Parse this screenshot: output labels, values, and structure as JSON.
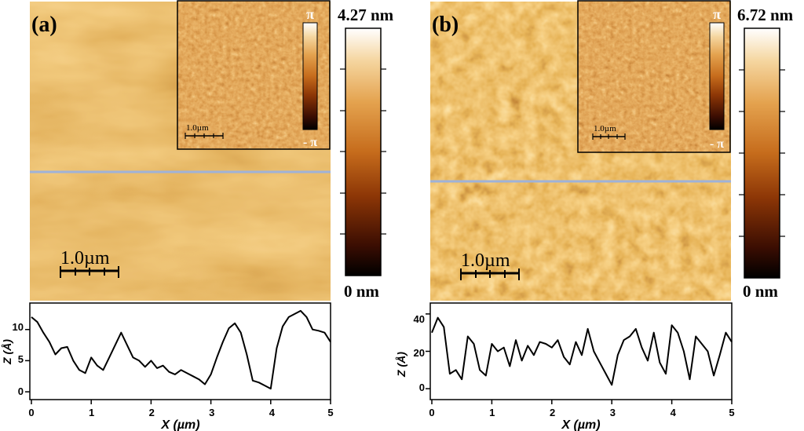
{
  "panels": [
    {
      "id": "a",
      "label": "(a)",
      "colorbar_max": "4.27 nm",
      "colorbar_min": "0 nm",
      "phase_max": "π",
      "phase_min": "- π",
      "scalebar_label": "1.0µm",
      "inset_scalebar_label": "1.0µm",
      "profile": {
        "type": "line",
        "xlabel": "X (µm)",
        "ylabel": "Z (Å)",
        "xlim": [
          0,
          5
        ],
        "ylim": [
          -1,
          14
        ],
        "xticks": [
          "0",
          "1",
          "2",
          "3",
          "4",
          "5"
        ],
        "yticks": [
          "0",
          "5",
          "10"
        ],
        "x": [
          0,
          0.1,
          0.2,
          0.3,
          0.4,
          0.5,
          0.6,
          0.7,
          0.8,
          0.9,
          1.0,
          1.1,
          1.2,
          1.3,
          1.4,
          1.5,
          1.6,
          1.7,
          1.8,
          1.9,
          2.0,
          2.1,
          2.2,
          2.3,
          2.4,
          2.5,
          2.6,
          2.7,
          2.8,
          2.9,
          3.0,
          3.1,
          3.2,
          3.3,
          3.4,
          3.5,
          3.6,
          3.7,
          3.8,
          3.9,
          4.0,
          4.1,
          4.2,
          4.3,
          4.4,
          4.5,
          4.6,
          4.7,
          4.8,
          4.9,
          5.0
        ],
        "y": [
          12,
          11.2,
          9.5,
          8,
          6,
          7,
          7.2,
          5,
          3.5,
          3,
          5.5,
          4.2,
          3.5,
          5.5,
          7.5,
          9.5,
          7.5,
          5.5,
          5,
          4,
          5,
          3.8,
          4.2,
          3.2,
          2.8,
          3.5,
          3,
          2.5,
          2,
          1.2,
          2.8,
          5.5,
          8,
          10.2,
          11,
          9.5,
          6,
          1.8,
          1.5,
          1,
          0.5,
          7,
          10.5,
          12,
          12.5,
          13,
          12,
          10,
          9.8,
          9.5,
          8
        ]
      }
    },
    {
      "id": "b",
      "label": "(b)",
      "colorbar_max": "6.72 nm",
      "colorbar_min": "0 nm",
      "phase_max": "π",
      "phase_min": "- π",
      "scalebar_label": "1.0µm",
      "inset_scalebar_label": "1.0µm",
      "profile": {
        "type": "line",
        "xlabel": "X (µm)",
        "ylabel": "Z (Å)",
        "xlim": [
          0,
          5
        ],
        "ylim": [
          -5,
          45
        ],
        "xticks": [
          "0",
          "1",
          "2",
          "3",
          "4",
          "5"
        ],
        "yticks": [
          "0",
          "20",
          "40"
        ],
        "x": [
          0,
          0.1,
          0.2,
          0.3,
          0.4,
          0.5,
          0.6,
          0.7,
          0.8,
          0.9,
          1.0,
          1.1,
          1.2,
          1.3,
          1.4,
          1.5,
          1.6,
          1.7,
          1.8,
          1.9,
          2.0,
          2.1,
          2.2,
          2.3,
          2.4,
          2.5,
          2.6,
          2.7,
          2.8,
          2.9,
          3.0,
          3.1,
          3.2,
          3.3,
          3.4,
          3.5,
          3.6,
          3.7,
          3.8,
          3.9,
          4.0,
          4.1,
          4.2,
          4.3,
          4.4,
          4.5,
          4.6,
          4.7,
          4.8,
          4.9,
          5.0
        ],
        "y": [
          30,
          38,
          33,
          8,
          10,
          5,
          28,
          24,
          10,
          7,
          24,
          20,
          22,
          12,
          26,
          15,
          23,
          18,
          25,
          24,
          22,
          26,
          17,
          13,
          25,
          18,
          32,
          20,
          14,
          8,
          2,
          18,
          26,
          28,
          32,
          22,
          15,
          30,
          14,
          8,
          34,
          30,
          20,
          5,
          28,
          24,
          20,
          7,
          18,
          30,
          25
        ]
      }
    }
  ]
}
